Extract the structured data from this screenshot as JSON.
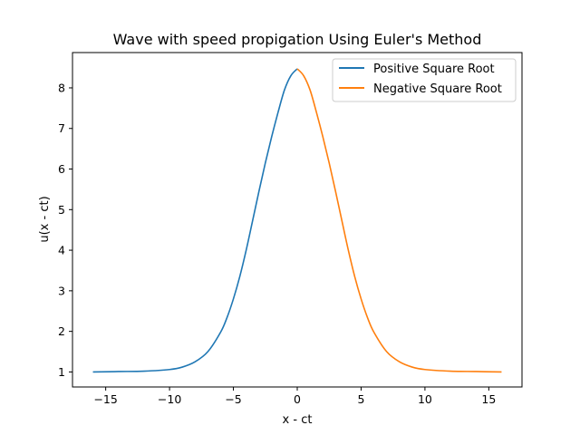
{
  "chart_data": {
    "type": "line",
    "title": "Wave with speed propigation Using Euler's Method",
    "xlabel": "x - ct",
    "ylabel": "u(x - ct)",
    "xlim": [
      -17.6,
      17.6
    ],
    "ylim": [
      0.63,
      8.87
    ],
    "xticks": [
      -15,
      -10,
      -5,
      0,
      5,
      10,
      15
    ],
    "xtick_labels": [
      "−15",
      "−10",
      "−5",
      "0",
      "5",
      "10",
      "15"
    ],
    "yticks": [
      1,
      2,
      3,
      4,
      5,
      6,
      7,
      8
    ],
    "ytick_labels": [
      "1",
      "2",
      "3",
      "4",
      "5",
      "6",
      "7",
      "8"
    ],
    "grid": false,
    "legend_position": "top-right",
    "series": [
      {
        "name": "Positive Square Root",
        "color": "#1f77b4",
        "x": [
          -16,
          -14,
          -12,
          -10,
          -9,
          -8,
          -7,
          -6,
          -5.5,
          -5,
          -4.5,
          -4,
          -3.5,
          -3,
          -2.5,
          -2,
          -1.5,
          -1,
          -0.5,
          0
        ],
        "y": [
          1.0,
          1.01,
          1.02,
          1.06,
          1.12,
          1.25,
          1.5,
          1.98,
          2.34,
          2.8,
          3.35,
          4.0,
          4.72,
          5.45,
          6.15,
          6.8,
          7.4,
          7.95,
          8.3,
          8.47
        ]
      },
      {
        "name": "Negative Square Root",
        "color": "#ff7f0e",
        "x": [
          0,
          0.5,
          1,
          1.5,
          2,
          2.5,
          3,
          3.5,
          4,
          4.5,
          5,
          5.5,
          6,
          7,
          8,
          9,
          10,
          12,
          14,
          16
        ],
        "y": [
          8.47,
          8.3,
          7.95,
          7.4,
          6.8,
          6.15,
          5.45,
          4.72,
          4.0,
          3.35,
          2.8,
          2.34,
          1.98,
          1.5,
          1.25,
          1.12,
          1.06,
          1.02,
          1.01,
          1.0
        ]
      }
    ]
  }
}
